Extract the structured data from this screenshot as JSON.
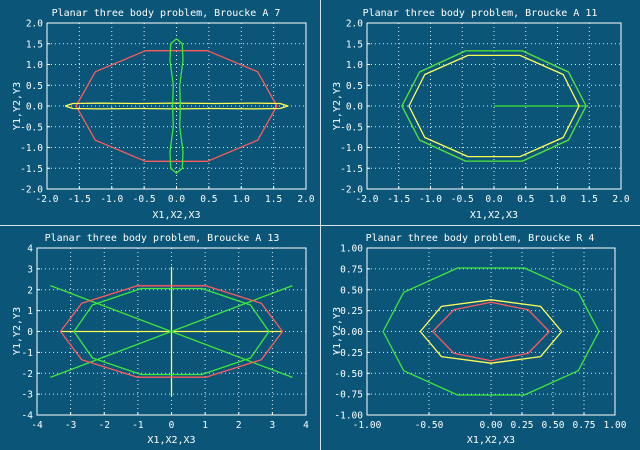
{
  "colors": {
    "background": "#0a5578",
    "axes": "#ffffff",
    "grid": "#dfe9ef",
    "separator": "#d8e4ea",
    "red": "#ff5a5a",
    "green": "#3ee83a",
    "yellow": "#ffff55"
  },
  "chart_data": [
    {
      "type": "line",
      "title": "Planar three body problem, Broucke A 7",
      "xlabel": "X1,X2,X3",
      "ylabel": "Y1,Y2,Y3",
      "xlim": [
        -2.0,
        2.0
      ],
      "ylim": [
        -2.0,
        2.0
      ],
      "xticks": [
        "-2.0",
        "-1.5",
        "-1.0",
        "-0.5",
        "0.0",
        "0.5",
        "1.0",
        "1.5",
        "2.0"
      ],
      "yticks": [
        "-2.0",
        "-1.5",
        "-1.0",
        "-0.5",
        "0.0",
        "0.5",
        "1.0",
        "1.5",
        "2.0"
      ],
      "grid": true,
      "series": [
        {
          "color": "red",
          "x": [
            1.55,
            1.254,
            0.479,
            -0.479,
            -1.254,
            -1.55,
            -1.254,
            -0.479,
            0.479,
            1.254,
            1.55
          ],
          "y": [
            0.0,
            0.823,
            1.332,
            1.332,
            0.823,
            0.0,
            -0.823,
            -1.332,
            -1.332,
            -0.823,
            0.0
          ]
        },
        {
          "color": "yellow",
          "x": [
            -1.72,
            -1.6,
            -1.2,
            -0.6,
            0.0,
            0.6,
            1.2,
            1.6,
            1.72,
            1.6,
            1.2,
            0.6,
            0.0,
            -0.6,
            -1.2,
            -1.6,
            -1.72
          ],
          "y": [
            0.0,
            0.06,
            0.07,
            0.06,
            0.07,
            0.06,
            0.07,
            0.06,
            0.0,
            -0.06,
            -0.07,
            -0.06,
            -0.07,
            -0.06,
            -0.07,
            -0.06,
            0.0
          ]
        },
        {
          "color": "green",
          "x": [
            0.0,
            0.09,
            0.1,
            0.05,
            0.06,
            0.05,
            0.1,
            0.09,
            0.0,
            -0.09,
            -0.1,
            -0.05,
            -0.06,
            -0.05,
            -0.1,
            -0.09,
            0.0
          ],
          "y": [
            1.62,
            1.5,
            1.1,
            0.5,
            0.0,
            -0.5,
            -1.1,
            -1.5,
            -1.62,
            -1.5,
            -1.1,
            -0.5,
            0.0,
            0.5,
            1.1,
            1.5,
            1.62
          ]
        }
      ]
    },
    {
      "type": "line",
      "title": "Planar three body problem, Broucke A 11",
      "xlabel": "X1,X2,X3",
      "ylabel": "Y1,Y2,Y3",
      "xlim": [
        -2.0,
        2.0
      ],
      "ylim": [
        -2.0,
        2.0
      ],
      "xticks": [
        "-2.0",
        "-1.5",
        "-1.0",
        "-0.5",
        "0.0",
        "0.5",
        "1.0",
        "1.5",
        "2.0"
      ],
      "yticks": [
        "-2.0",
        "-1.5",
        "-1.0",
        "-0.5",
        "0.0",
        "0.5",
        "1.0",
        "1.5",
        "2.0"
      ],
      "grid": true,
      "series": [
        {
          "color": "red",
          "x": [
            1.45,
            1.173,
            0.448,
            -0.448,
            -1.173,
            -1.45,
            -1.173,
            -0.448,
            0.448,
            1.173,
            1.45
          ],
          "y": [
            0.0,
            0.82,
            1.327,
            1.327,
            0.82,
            0.0,
            -0.82,
            -1.327,
            -1.327,
            -0.82,
            0.0
          ]
        },
        {
          "color": "green",
          "x": [
            0.0,
            1.45,
            1.173,
            0.448,
            -0.448,
            -1.173,
            -1.45,
            -1.173,
            -0.448,
            0.448,
            1.173,
            1.45
          ],
          "y": [
            0.0,
            0.0,
            0.82,
            1.327,
            1.327,
            0.82,
            0.0,
            -0.82,
            -1.327,
            -1.327,
            -0.82,
            0.0
          ]
        },
        {
          "color": "yellow",
          "x": [
            1.34,
            1.09,
            0.41,
            -0.41,
            -1.09,
            -1.34,
            -1.09,
            -0.41,
            0.41,
            1.09,
            1.34
          ],
          "y": [
            0.0,
            0.76,
            1.22,
            1.22,
            0.76,
            0.0,
            -0.76,
            -1.22,
            -1.22,
            -0.76,
            0.0
          ]
        }
      ]
    },
    {
      "type": "line",
      "title": "Planar three body problem, Broucke A 13",
      "xlabel": "X1,X2,X3",
      "ylabel": "Y1,Y2,Y3",
      "xlim": [
        -4,
        4
      ],
      "ylim": [
        -4,
        4
      ],
      "xticks": [
        "-4",
        "-3",
        "-2",
        "-1",
        "0",
        "1",
        "2",
        "3",
        "4"
      ],
      "yticks": [
        "-4",
        "-3",
        "-2",
        "-1",
        "0",
        "1",
        "2",
        "3",
        "4"
      ],
      "grid": true,
      "series": [
        {
          "color": "yellow",
          "x": [
            -3.3,
            3.3
          ],
          "y": [
            0.0,
            0.0
          ]
        },
        {
          "color": "yellow",
          "x": [
            0.0,
            0.0
          ],
          "y": [
            -3.1,
            3.1
          ]
        },
        {
          "color": "green",
          "x": [
            -3.6,
            3.6
          ],
          "y": [
            -2.2,
            2.2
          ]
        },
        {
          "color": "green",
          "x": [
            -3.6,
            3.6
          ],
          "y": [
            2.2,
            -2.2
          ]
        },
        {
          "color": "red",
          "x": [
            3.3,
            2.67,
            1.02,
            -1.02,
            -2.67,
            -3.3,
            -2.67,
            -1.02,
            1.02,
            2.67,
            3.3
          ],
          "y": [
            0.0,
            1.35,
            2.19,
            2.19,
            1.35,
            0.0,
            -1.35,
            -2.19,
            -2.19,
            -1.35,
            0.0
          ]
        },
        {
          "color": "green",
          "x": [
            2.9,
            2.35,
            0.9,
            -0.9,
            -2.35,
            -2.9,
            -2.35,
            -0.9,
            0.9,
            2.35,
            2.9
          ],
          "y": [
            0.0,
            1.27,
            2.06,
            2.06,
            1.27,
            0.0,
            -1.27,
            -2.06,
            -2.06,
            -1.27,
            0.0
          ]
        }
      ]
    },
    {
      "type": "line",
      "title": "Planar three body problem, Broucke R 4",
      "xlabel": "X1,X2,X3",
      "ylabel": "Y1,Y2,Y3",
      "xlim": [
        -1.0,
        1.0
      ],
      "ylim": [
        -1.0,
        1.0
      ],
      "xticks": [
        "-1.00",
        "-0.50",
        "0.00",
        "0.25",
        "0.50",
        "0.75",
        "1.00"
      ],
      "yticks": [
        "-1.00",
        "-0.75",
        "-0.50",
        "-0.25",
        "0.00",
        "0.25",
        "0.50",
        "0.75",
        "1.00"
      ],
      "grid": true,
      "series": [
        {
          "color": "green",
          "x": [
            0.87,
            0.704,
            0.269,
            -0.269,
            -0.704,
            -0.87,
            -0.704,
            -0.269,
            0.269,
            0.704,
            0.87
          ],
          "y": [
            0.0,
            0.47,
            0.761,
            0.761,
            0.47,
            0.0,
            -0.47,
            -0.761,
            -0.761,
            -0.47,
            0.0
          ]
        },
        {
          "color": "yellow",
          "x": [
            0.57,
            0.4,
            0.0,
            -0.4,
            -0.57,
            -0.4,
            0.0,
            0.4,
            0.57
          ],
          "y": [
            0.0,
            0.3,
            0.38,
            0.3,
            0.0,
            -0.3,
            -0.38,
            -0.3,
            0.0
          ]
        },
        {
          "color": "red",
          "x": [
            0.47,
            0.3,
            0.0,
            -0.3,
            -0.47,
            -0.3,
            0.0,
            0.3,
            0.47
          ],
          "y": [
            0.0,
            0.26,
            0.35,
            0.26,
            0.0,
            -0.26,
            -0.35,
            -0.26,
            0.0
          ]
        }
      ]
    }
  ]
}
